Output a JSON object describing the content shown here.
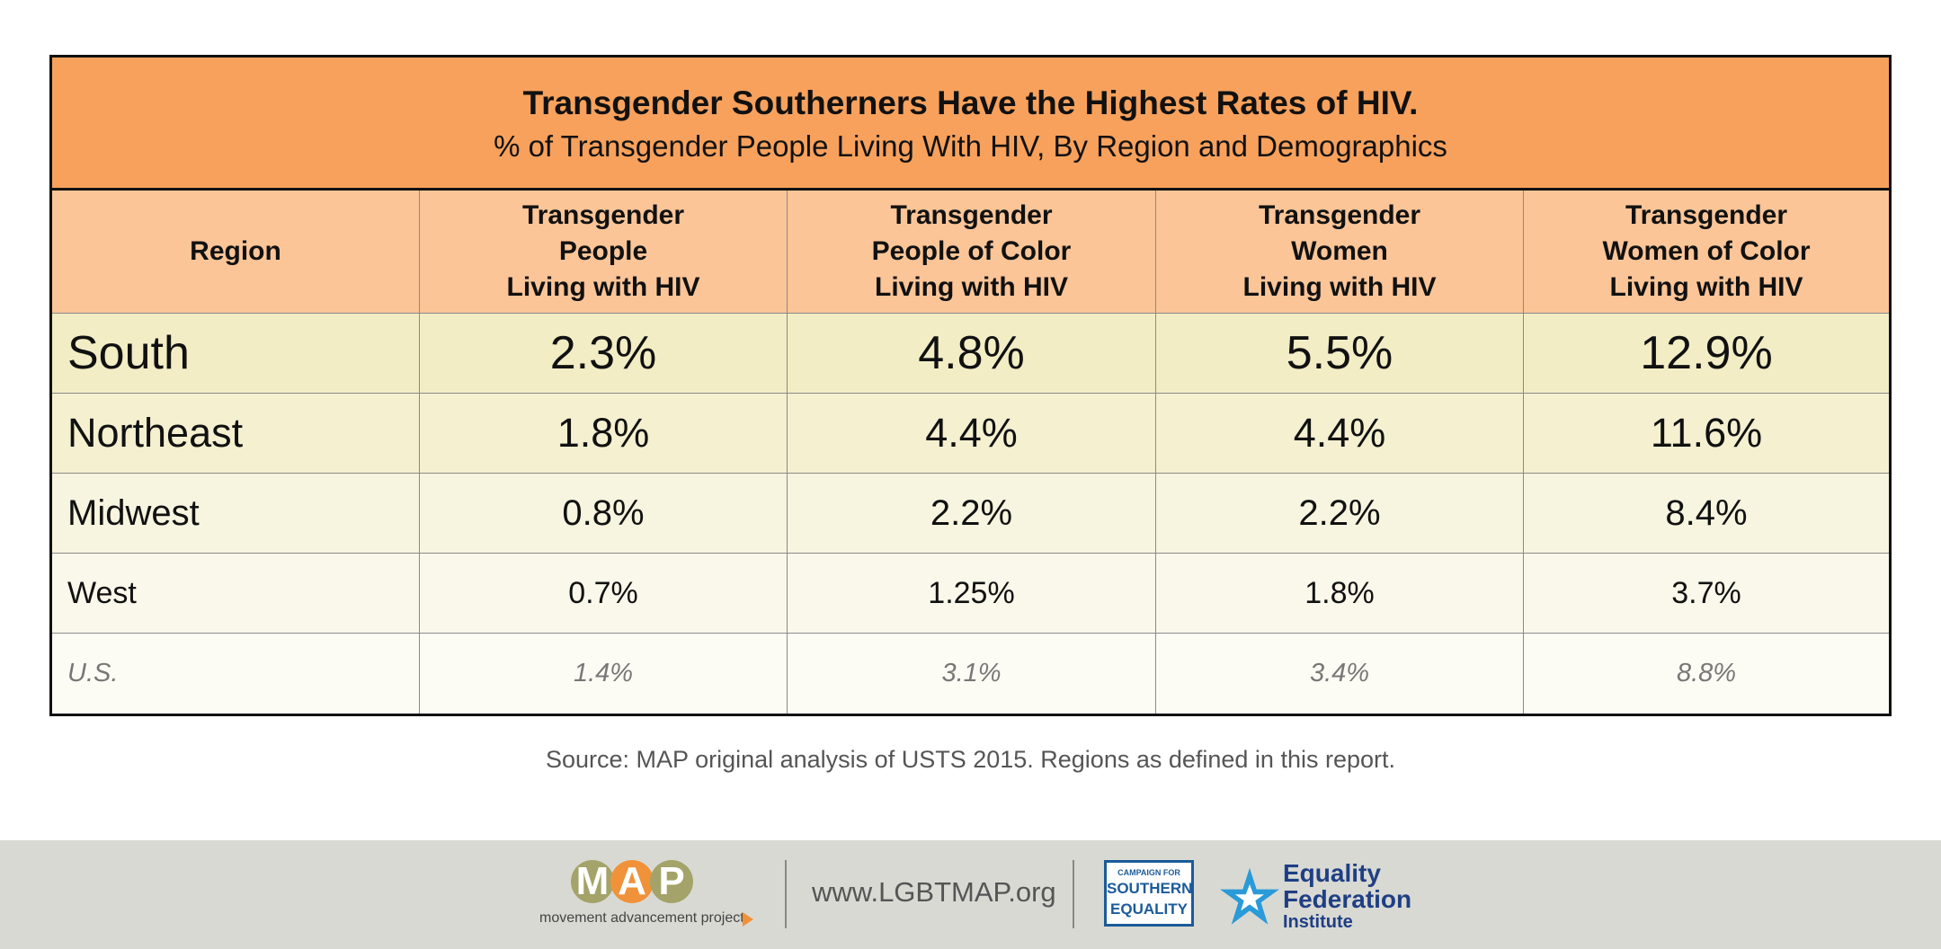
{
  "chart_data": {
    "type": "table",
    "title": "Transgender Southerners Have the Highest Rates of HIV.",
    "subtitle": "% of Transgender People Living With HIV, By Region and Demographics",
    "columns": [
      "Region",
      "Transgender\nPeople\nLiving with HIV",
      "Transgender\nPeople of Color\nLiving with HIV",
      "Transgender\nWomen\nLiving with HIV",
      "Transgender\nWomen of Color\nLiving with HIV"
    ],
    "rows": [
      {
        "region": "South",
        "values": [
          "2.3%",
          "4.8%",
          "5.5%",
          "12.9%"
        ],
        "bg": "#f2edc5",
        "text_color": "#111111",
        "italic": false
      },
      {
        "region": "Northeast",
        "values": [
          "1.8%",
          "4.4%",
          "4.4%",
          "11.6%"
        ],
        "bg": "#f4f0d0",
        "text_color": "#111111",
        "italic": false
      },
      {
        "region": "Midwest",
        "values": [
          "0.8%",
          "2.2%",
          "2.2%",
          "8.4%"
        ],
        "bg": "#f7f4df",
        "text_color": "#111111",
        "italic": false
      },
      {
        "region": "West",
        "values": [
          "0.7%",
          "1.25%",
          "1.8%",
          "3.7%"
        ],
        "bg": "#faf8ea",
        "text_color": "#111111",
        "italic": false
      },
      {
        "region": "U.S.",
        "values": [
          "1.4%",
          "3.1%",
          "3.4%",
          "8.8%"
        ],
        "bg": "#fcfbf4",
        "text_color": "#777777",
        "italic": true
      }
    ],
    "colors": {
      "title_band": "#f7a15c",
      "header_band": "#fbc598"
    }
  },
  "source_note": "Source: MAP original analysis of USTS 2015. Regions as defined in this report.",
  "footer": {
    "map_letters": [
      "M",
      "A",
      "P"
    ],
    "map_letter_colors": [
      "#a3a36a",
      "#f0923a",
      "#a3a36a"
    ],
    "map_tagline": "movement advancement project",
    "url": "www.LGBTMAP.org",
    "campaign_line1": "CAMPAIGN FOR",
    "campaign_line2": "SOUTHERN",
    "campaign_line3": "EQUALITY",
    "equality_line1": "Equality",
    "equality_line2": "Federation",
    "equality_line3": "Institute",
    "equality_star_color": "#2a9ad8"
  }
}
